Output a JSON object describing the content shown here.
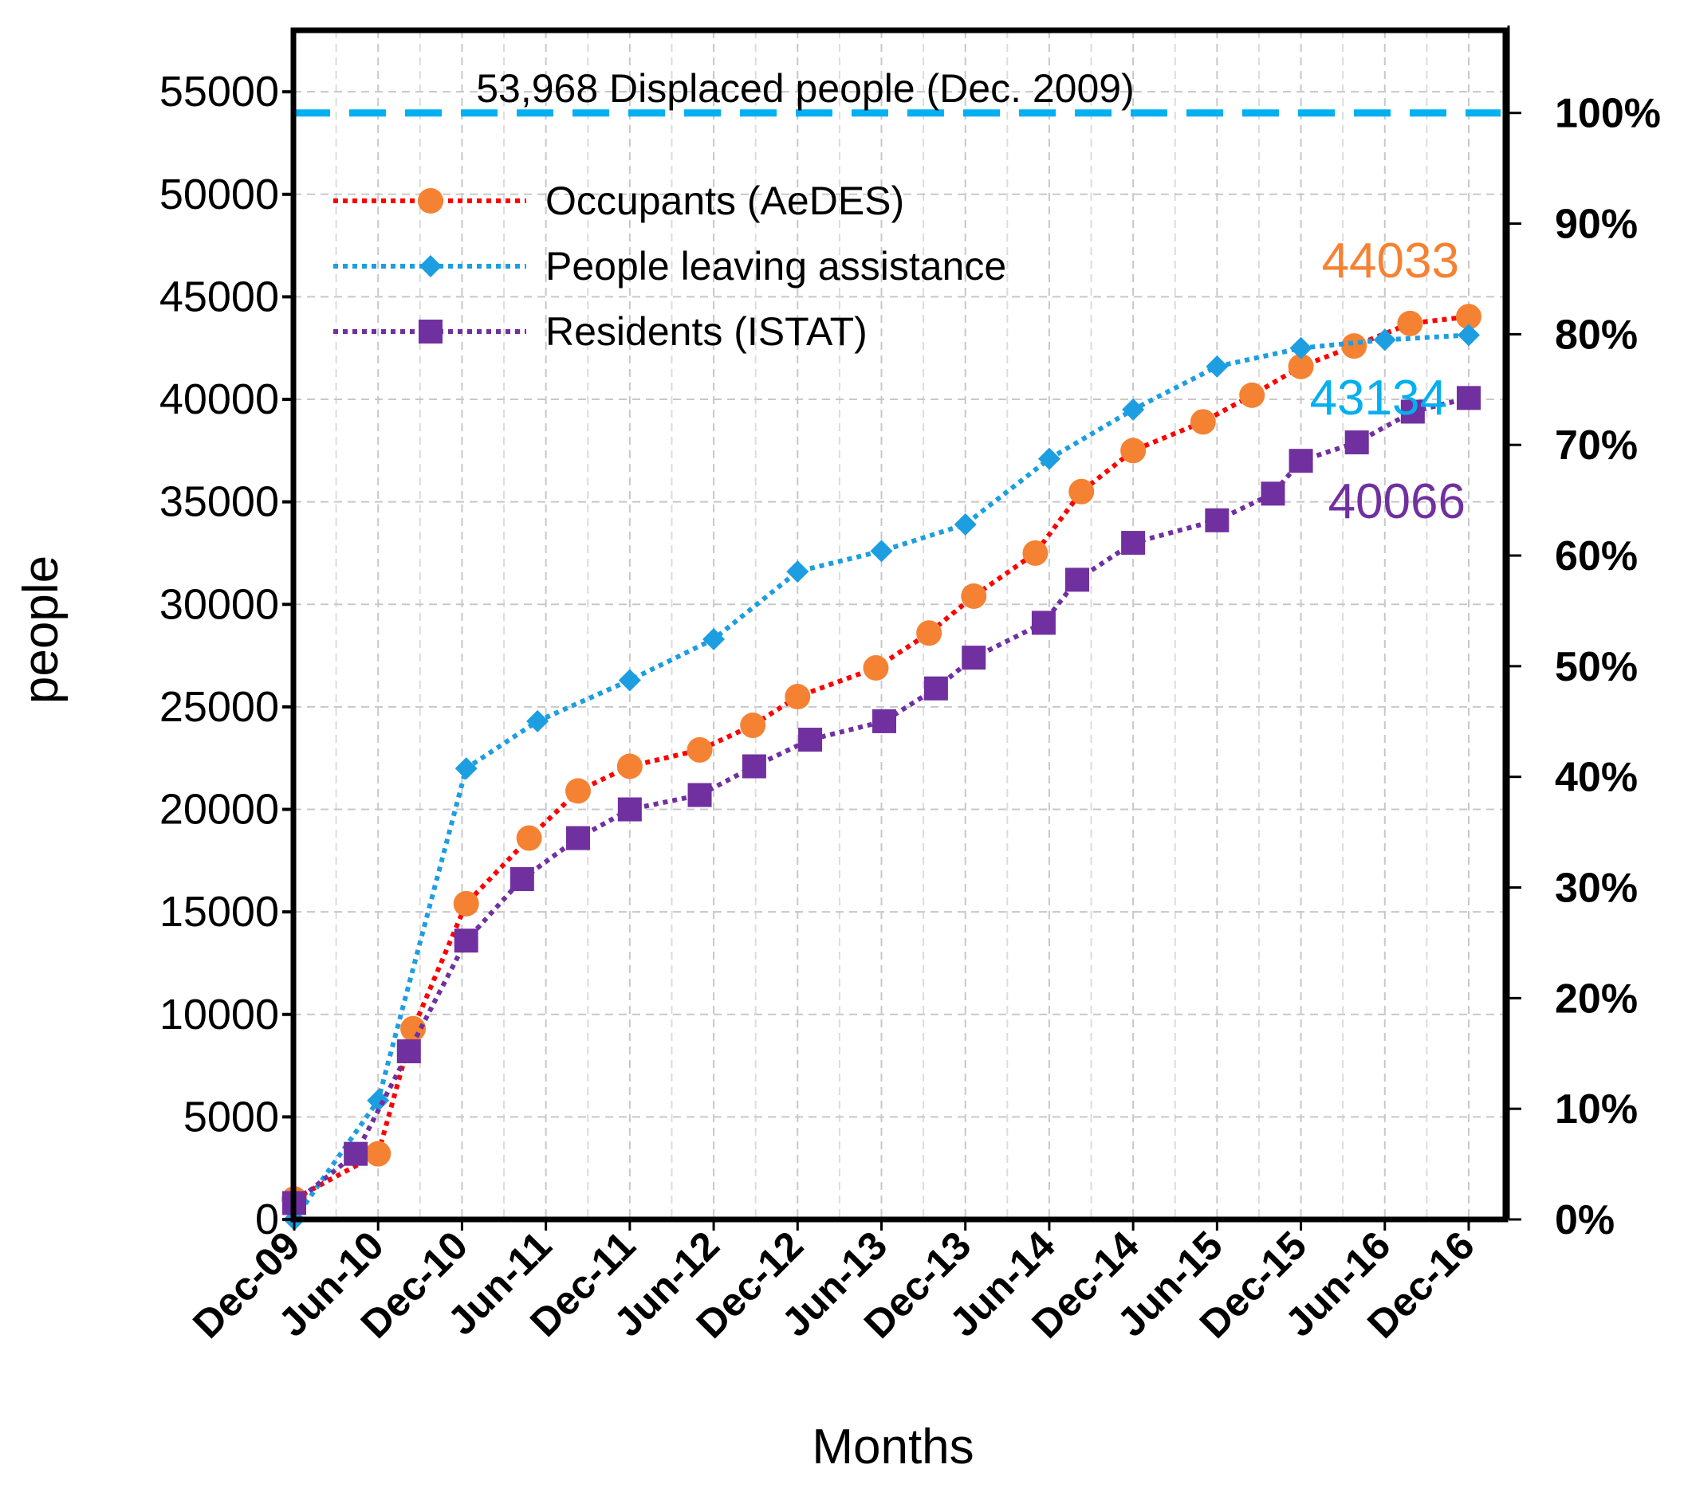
{
  "chart_data": {
    "type": "line",
    "title": "",
    "xlabel": "Months",
    "ylabel": "people",
    "ylim": [
      0,
      58000
    ],
    "y_ticks": [
      "0",
      "5000",
      "10000",
      "15000",
      "20000",
      "25000",
      "30000",
      "35000",
      "40000",
      "45000",
      "50000",
      "55000"
    ],
    "y_tick_values": [
      0,
      5000,
      10000,
      15000,
      20000,
      25000,
      30000,
      35000,
      40000,
      45000,
      50000,
      55000
    ],
    "y2_ticks": [
      "0%",
      "10%",
      "20%",
      "30%",
      "40%",
      "50%",
      "60%",
      "70%",
      "80%",
      "90%",
      "100%"
    ],
    "y2_range": [
      0,
      100
    ],
    "y2_base": 53968,
    "x_ticks": [
      "Dec-09",
      "Jun-10",
      "Dec-10",
      "Jun-11",
      "Dec-11",
      "Jun-12",
      "Dec-12",
      "Jun-13",
      "Dec-13",
      "Jun-14",
      "Dec-14",
      "Jun-15",
      "Dec-15",
      "Jun-16",
      "Dec-16"
    ],
    "x_range": [
      0,
      84
    ],
    "reference_line": {
      "value": 53968,
      "label": "53,968 Displaced people (Dec. 2009)",
      "color": "#00b0f0"
    },
    "series": [
      {
        "name": "Occupants (AeDES)",
        "color": "#ff0000",
        "marker": "circle",
        "marker_color": "#f58233",
        "x": [
          0,
          6,
          8.5,
          12.3,
          16.8,
          20.3,
          24,
          29,
          32.8,
          36,
          41.6,
          45.4,
          48.6,
          53,
          56.3,
          60,
          65,
          68.5,
          72,
          75.8,
          79.8,
          84
        ],
        "values": [
          1000,
          3200,
          9300,
          15400,
          18600,
          20900,
          22100,
          22900,
          24100,
          25500,
          26900,
          28600,
          30400,
          32500,
          35500,
          37500,
          38900,
          40200,
          41600,
          42600,
          43700,
          44033
        ],
        "end_label": "44033",
        "end_label_color": "#f58233"
      },
      {
        "name": "People leaving assistance",
        "color": "#1d9ee0",
        "marker": "diamond",
        "marker_color": "#1d9ee0",
        "x": [
          0,
          6,
          12.3,
          17.4,
          24,
          30,
          36,
          42,
          48,
          54,
          60,
          66,
          72,
          78,
          84
        ],
        "values": [
          0,
          5800,
          22000,
          24300,
          26300,
          28300,
          31600,
          32600,
          33900,
          37100,
          39500,
          41600,
          42500,
          42900,
          43134
        ],
        "end_label": "43134",
        "end_label_color": "#00b0f0"
      },
      {
        "name": "Residents (ISTAT)",
        "color": "#7030a0",
        "marker": "square",
        "marker_color": "#7030a0",
        "x": [
          0,
          4.4,
          8.2,
          12.3,
          16.3,
          20.3,
          24,
          29,
          32.9,
          36.9,
          42.2,
          45.9,
          48.6,
          53.6,
          56,
          60,
          66,
          70,
          72,
          76,
          80,
          84
        ],
        "values": [
          800,
          3200,
          8200,
          13600,
          16600,
          18600,
          20000,
          20700,
          22100,
          23400,
          24300,
          25900,
          27400,
          29100,
          31200,
          33000,
          34100,
          35400,
          37000,
          37900,
          39400,
          40066
        ],
        "end_label": "40066",
        "end_label_color": "#7030a0"
      }
    ],
    "legend_position": "top-left"
  }
}
